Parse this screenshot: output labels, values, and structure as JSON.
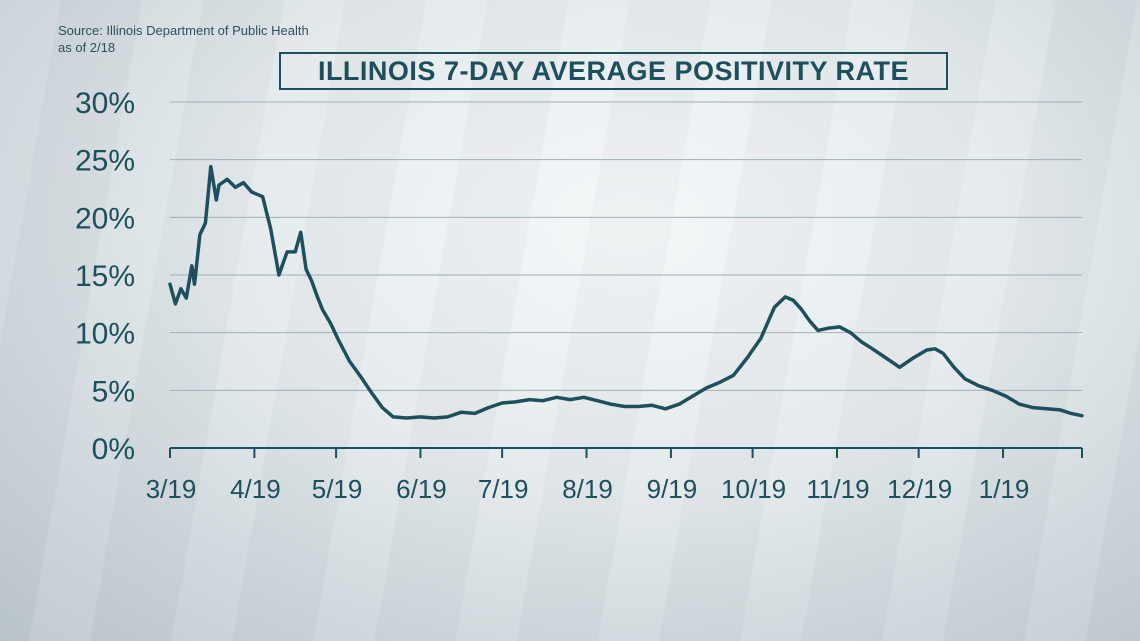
{
  "source": {
    "line1": "Source: Illinois Department of Public Health",
    "line2": "as of 2/18"
  },
  "chart_data": {
    "type": "line",
    "title": "ILLINOIS 7-DAY AVERAGE POSITIVITY RATE",
    "xlabel": "",
    "ylabel": "",
    "ylim": [
      0,
      30
    ],
    "y_ticks": [
      "0%",
      "5%",
      "10%",
      "15%",
      "20%",
      "25%",
      "30%"
    ],
    "x_ticks": [
      "3/19",
      "4/19",
      "5/19",
      "6/19",
      "7/19",
      "8/19",
      "9/19",
      "10/19",
      "11/19",
      "12/19",
      "1/19"
    ],
    "grid": true,
    "line_color": "#1e4f5c",
    "series": [
      {
        "x": [
          "2020-03-19",
          "2020-03-21",
          "2020-03-23",
          "2020-03-25",
          "2020-03-27",
          "2020-03-28",
          "2020-03-30",
          "2020-04-01",
          "2020-04-03",
          "2020-04-05",
          "2020-04-06",
          "2020-04-09",
          "2020-04-12",
          "2020-04-15",
          "2020-04-18",
          "2020-04-20",
          "2020-04-22",
          "2020-04-25",
          "2020-04-28",
          "2020-05-01",
          "2020-05-04",
          "2020-05-06",
          "2020-05-08",
          "2020-05-10",
          "2020-05-12",
          "2020-05-14",
          "2020-05-17",
          "2020-05-20",
          "2020-05-24",
          "2020-05-28",
          "2020-06-01",
          "2020-06-05",
          "2020-06-09",
          "2020-06-14",
          "2020-06-19",
          "2020-06-24",
          "2020-06-29",
          "2020-07-04",
          "2020-07-09",
          "2020-07-14",
          "2020-07-19",
          "2020-07-24",
          "2020-07-29",
          "2020-08-03",
          "2020-08-08",
          "2020-08-13",
          "2020-08-18",
          "2020-08-23",
          "2020-08-28",
          "2020-09-02",
          "2020-09-07",
          "2020-09-12",
          "2020-09-17",
          "2020-09-22",
          "2020-09-27",
          "2020-10-02",
          "2020-10-07",
          "2020-10-12",
          "2020-10-17",
          "2020-10-22",
          "2020-10-27",
          "2020-10-31",
          "2020-11-03",
          "2020-11-06",
          "2020-11-09",
          "2020-11-12",
          "2020-11-16",
          "2020-11-20",
          "2020-11-24",
          "2020-11-28",
          "2020-12-02",
          "2020-12-07",
          "2020-12-12",
          "2020-12-17",
          "2020-12-22",
          "2020-12-25",
          "2020-12-28",
          "2021-01-01",
          "2021-01-05",
          "2021-01-10",
          "2021-01-15",
          "2021-01-20",
          "2021-01-25",
          "2021-01-30",
          "2021-02-04",
          "2021-02-09",
          "2021-02-13",
          "2021-02-17"
        ],
        "y": [
          14.2,
          12.5,
          13.8,
          13.0,
          15.8,
          14.2,
          18.5,
          19.5,
          24.4,
          21.5,
          22.8,
          23.3,
          22.6,
          23.0,
          22.2,
          22.0,
          21.8,
          19.0,
          15.0,
          17.0,
          17.0,
          18.7,
          15.5,
          14.5,
          13.2,
          12.0,
          10.8,
          9.3,
          7.5,
          6.2,
          4.8,
          3.5,
          2.7,
          2.6,
          2.7,
          2.6,
          2.7,
          3.1,
          3.0,
          3.5,
          3.9,
          4.0,
          4.2,
          4.1,
          4.4,
          4.2,
          4.4,
          4.1,
          3.8,
          3.6,
          3.6,
          3.7,
          3.4,
          3.8,
          4.5,
          5.2,
          5.7,
          6.3,
          7.8,
          9.5,
          12.2,
          13.1,
          12.8,
          12.0,
          11.0,
          10.2,
          10.4,
          10.5,
          10.0,
          9.2,
          8.6,
          7.8,
          7.0,
          7.8,
          8.5,
          8.6,
          8.2,
          7.0,
          6.0,
          5.4,
          5.0,
          4.5,
          3.8,
          3.5,
          3.4,
          3.3,
          3.0,
          2.8
        ]
      }
    ]
  }
}
